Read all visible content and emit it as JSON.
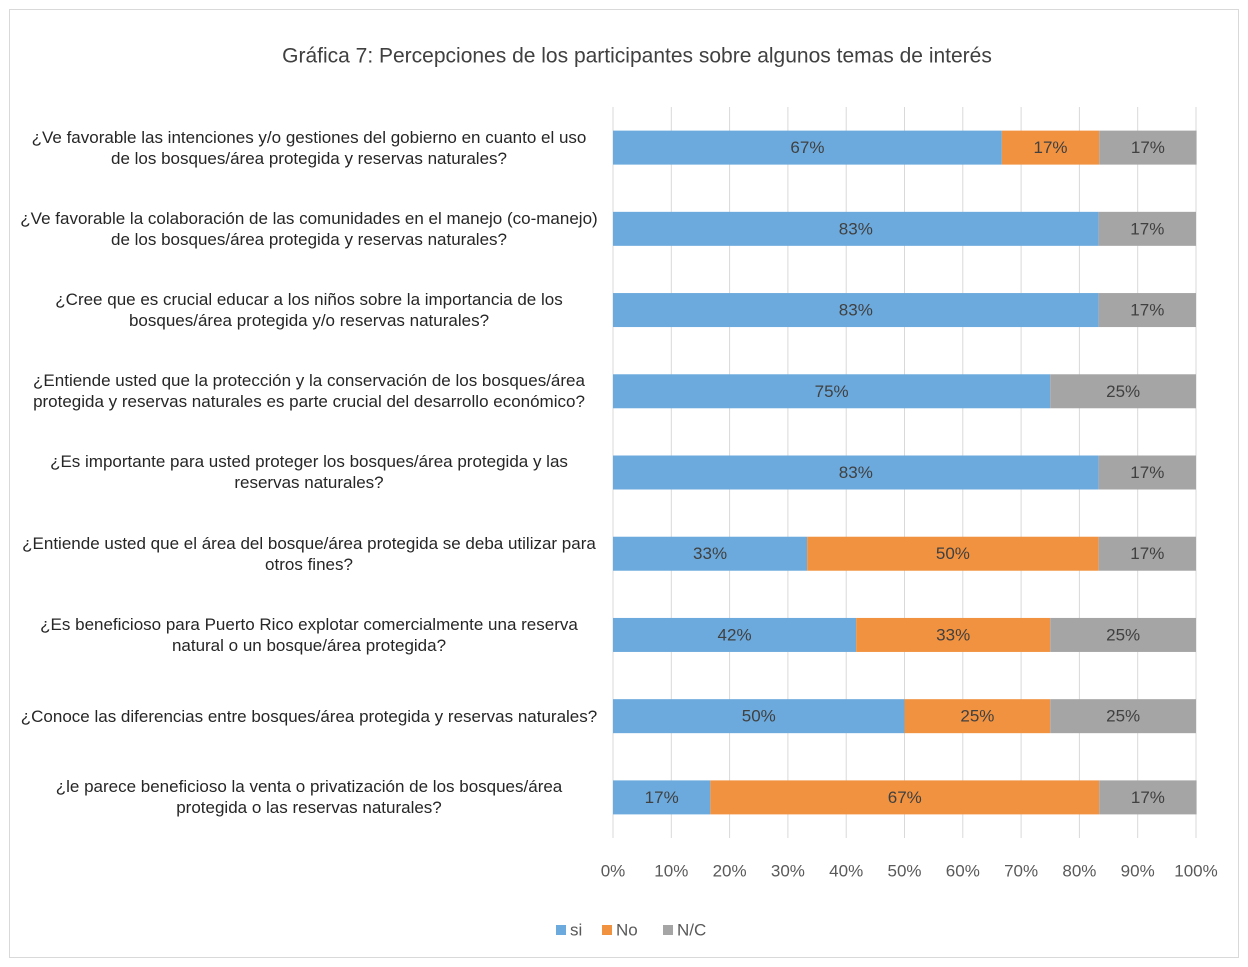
{
  "chart_data": {
    "type": "stacked-bar-horizontal",
    "title": "Gráfica 7: Percepciones de los participantes sobre algunos temas de interés",
    "categories": [
      "¿Ve favorable las intenciones y/o gestiones del gobierno en cuanto el uso de los bosques/área protegida y reservas naturales?",
      "¿Ve favorable la colaboración de las comunidades en el manejo (co-manejo) de los bosques/área protegida y reservas naturales?",
      "¿Cree que es crucial educar a los niños sobre la importancia de los bosques/área protegida y/o reservas naturales?",
      "¿Entiende usted que la protección y la conservación de los bosques/área protegida y reservas naturales es parte crucial del desarrollo económico?",
      "¿Es importante para usted proteger los bosques/área protegida y las reservas naturales?",
      "¿Entiende usted que el área del bosque/área protegida se deba utilizar para otros fines?",
      "¿Es beneficioso para Puerto Rico explotar comercialmente una reserva natural o un bosque/área protegida?",
      "¿Conoce las diferencias entre bosques/área protegida y reservas naturales?",
      "¿le parece beneficioso la venta o privatización de los bosques/área protegida o las reservas naturales?"
    ],
    "series": [
      {
        "name": "si",
        "color": "#6caadd",
        "values": [
          66.7,
          83.3,
          83.3,
          75,
          83.3,
          33.3,
          41.7,
          50,
          16.7
        ],
        "value_labels": [
          "67%",
          "83%",
          "83%",
          "75%",
          "83%",
          "33%",
          "42%",
          "50%",
          "17%"
        ]
      },
      {
        "name": "No",
        "color": "#f19240",
        "values": [
          16.7,
          null,
          null,
          null,
          null,
          50,
          33.3,
          25,
          66.7
        ],
        "value_labels": [
          "17%",
          null,
          null,
          null,
          null,
          "50%",
          "33%",
          "25%",
          "67%"
        ]
      },
      {
        "name": "N/C",
        "color": "#a5a5a5",
        "values": [
          16.7,
          16.7,
          16.7,
          25,
          16.7,
          16.7,
          25,
          25,
          16.7
        ],
        "value_labels": [
          "17%",
          "17%",
          "17%",
          "25%",
          "17%",
          "17%",
          "25%",
          "25%",
          "17%"
        ]
      }
    ],
    "xlim": [
      0,
      100
    ],
    "xticks": [
      {
        "value": 0,
        "label": "0%"
      },
      {
        "value": 10,
        "label": "10%"
      },
      {
        "value": 20,
        "label": "20%"
      },
      {
        "value": 30,
        "label": "30%"
      },
      {
        "value": 40,
        "label": "40%"
      },
      {
        "value": 50,
        "label": "50%"
      },
      {
        "value": 60,
        "label": "60%"
      },
      {
        "value": 70,
        "label": "70%"
      },
      {
        "value": 80,
        "label": "80%"
      },
      {
        "value": 90,
        "label": "90%"
      },
      {
        "value": 100,
        "label": "100%"
      }
    ],
    "grid": true,
    "legend": "bottom"
  }
}
